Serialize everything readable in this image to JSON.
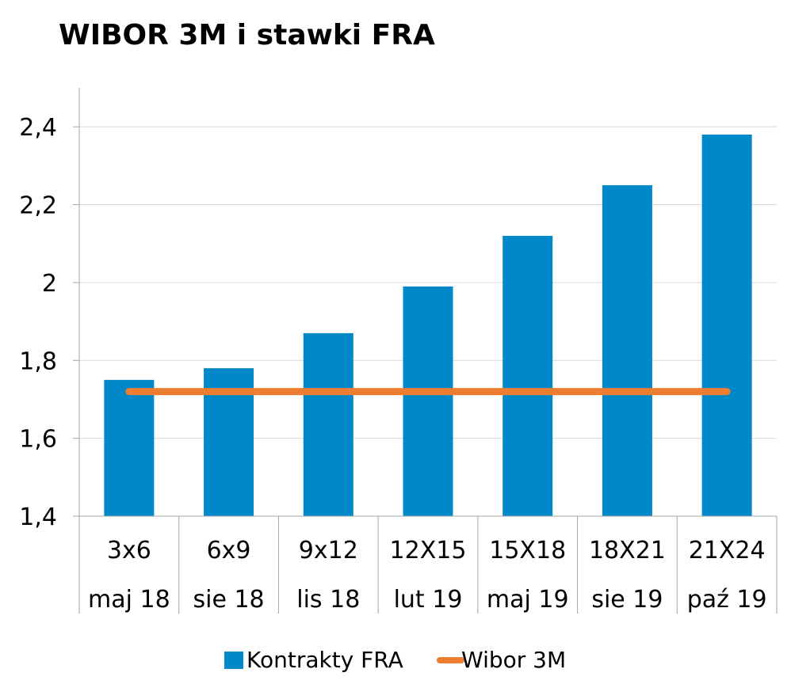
{
  "chart_data": {
    "type": "bar",
    "title": "WIBOR 3M i stawki FRA",
    "categories": [
      {
        "top": "3x6",
        "bottom": "maj 18"
      },
      {
        "top": "6x9",
        "bottom": "sie 18"
      },
      {
        "top": "9x12",
        "bottom": "lis 18"
      },
      {
        "top": "12X15",
        "bottom": "lut 19"
      },
      {
        "top": "15X18",
        "bottom": "maj 19"
      },
      {
        "top": "18X21",
        "bottom": "sie 19"
      },
      {
        "top": "21X24",
        "bottom": "paź 19"
      }
    ],
    "series": [
      {
        "name": "Kontrakty FRA",
        "type": "bar",
        "color": "#0088C9",
        "values": [
          1.75,
          1.78,
          1.87,
          1.99,
          2.12,
          2.25,
          2.38
        ]
      },
      {
        "name": "Wibor 3M",
        "type": "line",
        "color": "#ED7D31",
        "values": [
          1.72,
          1.72,
          1.72,
          1.72,
          1.72,
          1.72,
          1.72
        ]
      }
    ],
    "ylim": [
      1.4,
      2.5
    ],
    "yticks": [
      {
        "value": 1.4,
        "label": "1,4"
      },
      {
        "value": 1.6,
        "label": "1,6"
      },
      {
        "value": 1.8,
        "label": "1,8"
      },
      {
        "value": 2.0,
        "label": "2"
      },
      {
        "value": 2.2,
        "label": "2,2"
      },
      {
        "value": 2.4,
        "label": "2,4"
      }
    ],
    "grid": true,
    "legend_position": "bottom"
  }
}
